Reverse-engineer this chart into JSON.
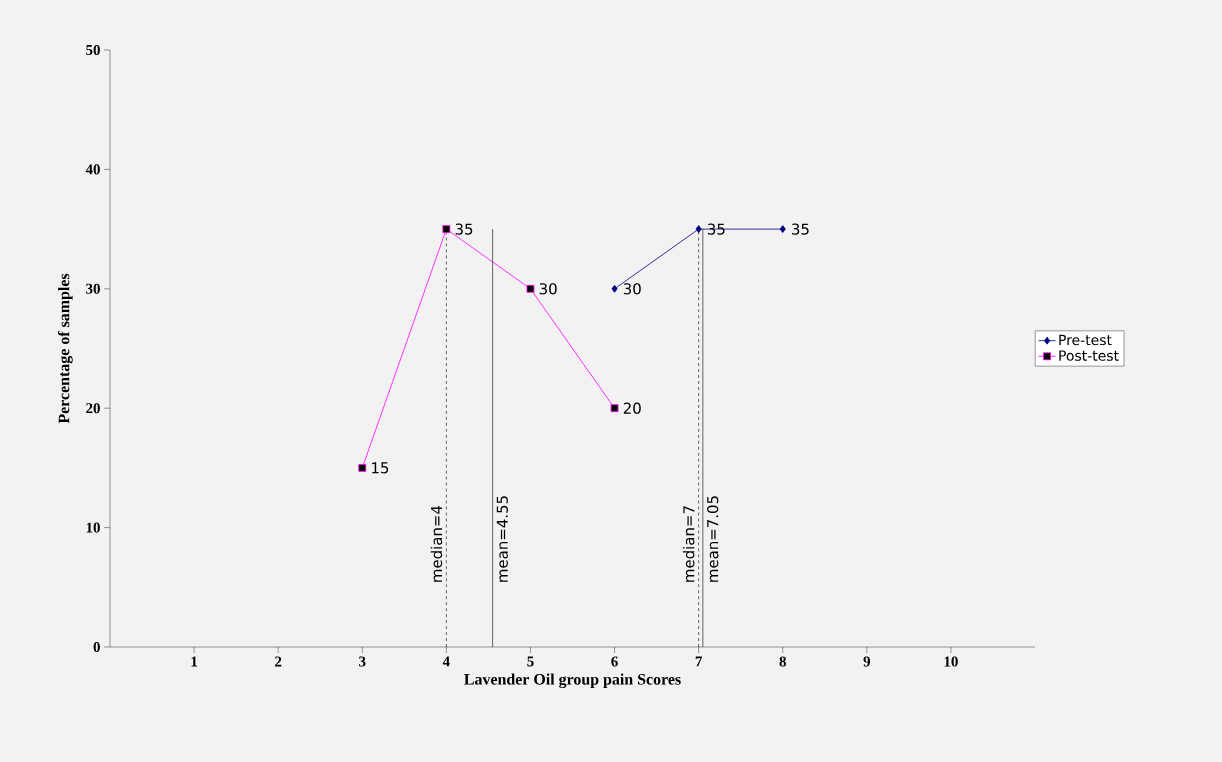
{
  "chart_data": {
    "type": "line",
    "xlabel": "Lavender Oil group pain Scores",
    "ylabel": "Percentage of samples",
    "xlim": [
      0,
      11
    ],
    "xticks": [
      1,
      2,
      3,
      4,
      5,
      6,
      7,
      8,
      9,
      10
    ],
    "ylim": [
      0,
      50
    ],
    "yticks": [
      0,
      10,
      20,
      30,
      40,
      50
    ],
    "series": [
      {
        "name": "Pre-test",
        "color": "#000080",
        "marker": "diamond",
        "x": [
          6,
          7,
          8
        ],
        "values": [
          30,
          35,
          35
        ]
      },
      {
        "name": "Post-test",
        "color": "#ff00ff",
        "marker": "square",
        "x": [
          3,
          4,
          5,
          6
        ],
        "values": [
          15,
          35,
          30,
          20
        ]
      }
    ],
    "data_labels": true,
    "legend": "right",
    "grid": false,
    "ref_lines": [
      {
        "axis": "x",
        "value": 4,
        "label": "median=4",
        "line_style": "dashed"
      },
      {
        "axis": "x",
        "value": 4.55,
        "label": "mean=4.55",
        "line_style": "solid"
      },
      {
        "axis": "x",
        "value": 7,
        "label": "median=7",
        "line_style": "dashed"
      },
      {
        "axis": "x",
        "value": 7.05,
        "label": "mean=7.05",
        "line_style": "solid"
      }
    ]
  }
}
